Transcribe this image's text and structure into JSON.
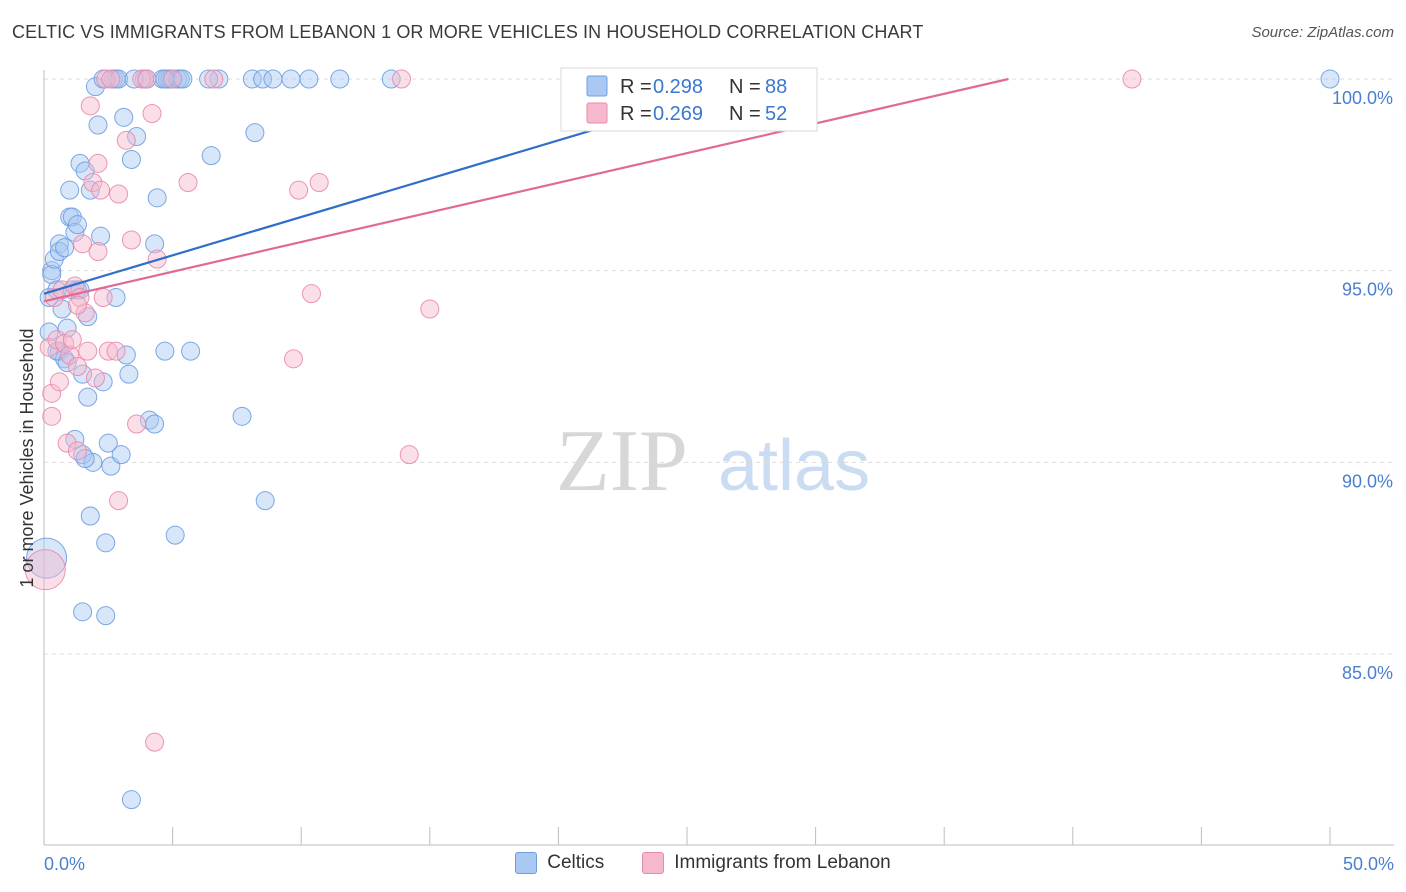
{
  "title": "CELTIC VS IMMIGRANTS FROM LEBANON 1 OR MORE VEHICLES IN HOUSEHOLD CORRELATION CHART",
  "source": "Source: ZipAtlas.com",
  "watermark": {
    "zip": "ZIP",
    "atlas": "atlas"
  },
  "colors": {
    "blue_fill": "#a9c8f2",
    "blue_stroke": "#6d9fe0",
    "blue_line": "#2f6fc9",
    "pink_fill": "#f6b8cc",
    "pink_stroke": "#e98aaa",
    "pink_line": "#e06a94",
    "tick_text": "#4a7fd0",
    "grid": "#dddddd"
  },
  "chart_data": {
    "type": "scatter",
    "title": "CELTIC VS IMMIGRANTS FROM LEBANON 1 OR MORE VEHICLES IN HOUSEHOLD CORRELATION CHART",
    "xlabel": "",
    "ylabel": "1 or more Vehicles in Household",
    "xlim": [
      0,
      50
    ],
    "ylim": [
      80.4,
      100.9
    ],
    "x_tick_labels": [
      {
        "value": 0,
        "label": "0.0%"
      },
      {
        "value": 50,
        "label": "50.0%"
      }
    ],
    "x_minor_ticks": [
      5,
      10,
      15,
      20,
      25,
      30,
      35,
      40,
      45,
      50
    ],
    "y_ticks": [
      {
        "value": 85,
        "label": "85.0%"
      },
      {
        "value": 90,
        "label": "90.0%"
      },
      {
        "value": 95,
        "label": "95.0%"
      },
      {
        "value": 100,
        "label": "100.0%"
      }
    ],
    "legend": [
      {
        "name": "Celtics",
        "r_label": "R =",
        "r": "0.298",
        "n_label": "N =",
        "n": "88"
      },
      {
        "name": "Immigrants from Lebanon",
        "r_label": "R =",
        "r": "0.269",
        "n_label": "N =",
        "n": "52"
      }
    ],
    "series": [
      {
        "name": "Celtics",
        "trend": {
          "x": [
            0,
            28
          ],
          "y": [
            94.4,
            100
          ]
        },
        "points": [
          [
            0.1,
            87.5
          ],
          [
            0.2,
            94.3
          ],
          [
            0.2,
            93.4
          ],
          [
            0.3,
            95.0
          ],
          [
            0.3,
            94.9
          ],
          [
            0.4,
            95.3
          ],
          [
            0.5,
            94.5
          ],
          [
            0.6,
            95.7
          ],
          [
            0.6,
            95.5
          ],
          [
            0.6,
            92.9
          ],
          [
            0.7,
            94.0
          ],
          [
            0.8,
            92.7
          ],
          [
            0.9,
            93.5
          ],
          [
            1.0,
            97.1
          ],
          [
            1.0,
            96.4
          ],
          [
            1.1,
            96.4
          ],
          [
            1.1,
            94.5
          ],
          [
            1.2,
            96.0
          ],
          [
            1.3,
            94.5
          ],
          [
            1.3,
            96.2
          ],
          [
            1.4,
            97.8
          ],
          [
            1.5,
            92.3
          ],
          [
            1.5,
            90.2
          ],
          [
            1.6,
            97.6
          ],
          [
            1.7,
            93.8
          ],
          [
            1.7,
            91.7
          ],
          [
            1.8,
            88.6
          ],
          [
            1.8,
            97.1
          ],
          [
            1.9,
            90.0
          ],
          [
            2.0,
            99.8
          ],
          [
            2.1,
            98.8
          ],
          [
            2.2,
            95.9
          ],
          [
            2.3,
            92.1
          ],
          [
            2.4,
            87.9
          ],
          [
            2.5,
            90.5
          ],
          [
            2.6,
            89.9
          ],
          [
            2.7,
            100.0
          ],
          [
            2.8,
            100.0
          ],
          [
            2.9,
            100.0
          ],
          [
            3.0,
            90.2
          ],
          [
            3.1,
            99.0
          ],
          [
            3.2,
            92.8
          ],
          [
            3.3,
            92.3
          ],
          [
            3.4,
            97.9
          ],
          [
            3.6,
            98.5
          ],
          [
            3.9,
            100.0
          ],
          [
            4.0,
            100.0
          ],
          [
            4.1,
            91.1
          ],
          [
            4.3,
            91.0
          ],
          [
            4.3,
            95.7
          ],
          [
            4.4,
            96.9
          ],
          [
            4.6,
            100.0
          ],
          [
            4.7,
            92.9
          ],
          [
            4.8,
            100.0
          ],
          [
            4.9,
            100.0
          ],
          [
            5.0,
            100.0
          ],
          [
            5.1,
            88.1
          ],
          [
            5.2,
            100.0
          ],
          [
            5.3,
            100.0
          ],
          [
            5.4,
            100.0
          ],
          [
            5.7,
            92.9
          ],
          [
            6.5,
            98.0
          ],
          [
            6.8,
            100.0
          ],
          [
            7.7,
            91.2
          ],
          [
            8.1,
            100.0
          ],
          [
            8.2,
            98.6
          ],
          [
            8.5,
            100.0
          ],
          [
            8.6,
            89.0
          ],
          [
            8.9,
            100.0
          ],
          [
            9.6,
            100.0
          ],
          [
            10.3,
            100.0
          ],
          [
            11.5,
            100.0
          ],
          [
            13.5,
            100.0
          ],
          [
            1.5,
            86.1
          ],
          [
            2.4,
            86.0
          ],
          [
            3.4,
            81.2
          ],
          [
            0.5,
            92.9
          ],
          [
            0.9,
            92.6
          ],
          [
            1.2,
            90.6
          ],
          [
            1.6,
            90.1
          ],
          [
            2.8,
            94.3
          ],
          [
            4.7,
            100.0
          ],
          [
            6.4,
            100.0
          ],
          [
            2.3,
            100.0
          ],
          [
            50.0,
            100.0
          ],
          [
            3.5,
            100.0
          ],
          [
            0.8,
            95.6
          ],
          [
            1.4,
            94.5
          ]
        ]
      },
      {
        "name": "Immigrants from Lebanon",
        "trend": {
          "x": [
            0,
            37.5
          ],
          "y": [
            94.2,
            100
          ]
        },
        "points": [
          [
            0.05,
            87.2
          ],
          [
            0.2,
            93.0
          ],
          [
            0.3,
            91.8
          ],
          [
            0.3,
            91.2
          ],
          [
            0.4,
            94.3
          ],
          [
            0.5,
            93.2
          ],
          [
            0.6,
            92.1
          ],
          [
            0.7,
            94.5
          ],
          [
            0.8,
            93.1
          ],
          [
            0.9,
            90.5
          ],
          [
            1.0,
            92.8
          ],
          [
            1.1,
            93.2
          ],
          [
            1.2,
            94.6
          ],
          [
            1.3,
            92.5
          ],
          [
            1.3,
            90.3
          ],
          [
            1.4,
            94.3
          ],
          [
            1.5,
            95.7
          ],
          [
            1.6,
            93.9
          ],
          [
            1.7,
            92.9
          ],
          [
            1.8,
            99.3
          ],
          [
            1.9,
            97.3
          ],
          [
            2.0,
            92.2
          ],
          [
            2.1,
            97.8
          ],
          [
            2.2,
            97.1
          ],
          [
            2.3,
            94.3
          ],
          [
            2.4,
            100.0
          ],
          [
            2.5,
            92.9
          ],
          [
            2.6,
            100.0
          ],
          [
            2.8,
            92.9
          ],
          [
            2.9,
            89.0
          ],
          [
            3.2,
            98.4
          ],
          [
            3.4,
            95.8
          ],
          [
            3.6,
            91.0
          ],
          [
            3.8,
            100.0
          ],
          [
            4.0,
            100.0
          ],
          [
            4.2,
            99.1
          ],
          [
            4.4,
            95.3
          ],
          [
            4.3,
            82.7
          ],
          [
            5.0,
            100.0
          ],
          [
            5.6,
            97.3
          ],
          [
            6.6,
            100.0
          ],
          [
            9.7,
            92.7
          ],
          [
            9.9,
            97.1
          ],
          [
            10.4,
            94.4
          ],
          [
            10.7,
            97.3
          ],
          [
            13.9,
            100.0
          ],
          [
            14.2,
            90.2
          ],
          [
            15.0,
            94.0
          ],
          [
            42.3,
            100.0
          ],
          [
            1.3,
            94.1
          ],
          [
            2.1,
            95.5
          ],
          [
            2.9,
            97.0
          ]
        ]
      }
    ]
  }
}
